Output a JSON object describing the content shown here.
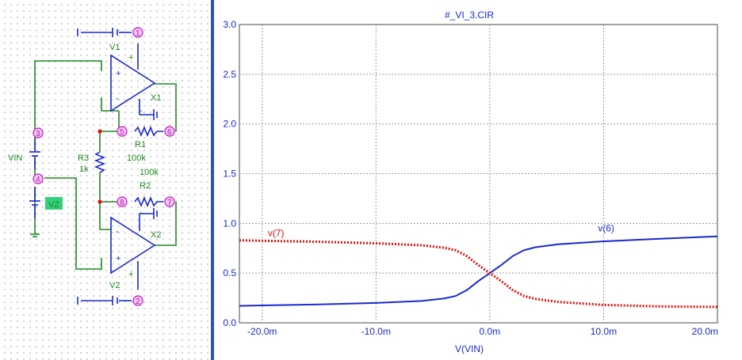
{
  "schematic": {
    "nodes": [
      "1",
      "2",
      "3",
      "4",
      "5",
      "6",
      "7",
      "8"
    ],
    "labels": {
      "v1": "V1",
      "v2": "V2",
      "x1": "X1",
      "x2": "X2",
      "vin": "VIN",
      "vz": "VZ",
      "r3": "R3",
      "r3_value": "1k",
      "r1": "R1",
      "r1_value": "100k",
      "r2": "R2",
      "r2_value": "100k",
      "plus": "+",
      "minus": "-"
    },
    "colors": {
      "wire": "#1f8a1f",
      "component": "#1a28d2",
      "node": "#cc33cc",
      "junction": "#e01010",
      "vz_highlight": "#34d17c"
    }
  },
  "chart_data": {
    "type": "line",
    "title": "#_VI_3.CIR",
    "xlabel": "V(VIN)",
    "ylabel": "",
    "xlim": [
      -0.022,
      0.02
    ],
    "ylim": [
      0,
      3.0
    ],
    "xticks": [
      -0.02,
      -0.01,
      0,
      0.01,
      0.02
    ],
    "xtick_labels": [
      "-20.0m",
      "-10.0m",
      "0.0m",
      "10.0m",
      "20.0m"
    ],
    "yticks": [
      0.0,
      0.5,
      1.0,
      1.5,
      2.0,
      2.5,
      3.0
    ],
    "ytick_labels": [
      "0.0",
      "0.5",
      "1.0",
      "1.5",
      "2.0",
      "2.5",
      "3.0"
    ],
    "grid": true,
    "series": [
      {
        "name": "v(6)",
        "color": "#1a28d2",
        "style": "solid",
        "x": [
          -0.022,
          -0.02,
          -0.015,
          -0.01,
          -0.006,
          -0.004,
          -0.003,
          -0.002,
          -0.001,
          0,
          0.001,
          0.002,
          0.003,
          0.004,
          0.006,
          0.01,
          0.015,
          0.02
        ],
        "y": [
          0.17,
          0.175,
          0.185,
          0.2,
          0.22,
          0.245,
          0.27,
          0.33,
          0.42,
          0.5,
          0.58,
          0.67,
          0.73,
          0.76,
          0.79,
          0.82,
          0.845,
          0.87
        ]
      },
      {
        "name": "v(7)",
        "color": "#e01010",
        "style": "dotted",
        "x": [
          -0.022,
          -0.02,
          -0.015,
          -0.01,
          -0.006,
          -0.004,
          -0.003,
          -0.002,
          -0.001,
          0,
          0.001,
          0.002,
          0.003,
          0.004,
          0.006,
          0.01,
          0.015,
          0.02
        ],
        "y": [
          0.83,
          0.825,
          0.815,
          0.8,
          0.78,
          0.755,
          0.73,
          0.67,
          0.58,
          0.5,
          0.42,
          0.33,
          0.27,
          0.24,
          0.21,
          0.18,
          0.165,
          0.16
        ]
      }
    ],
    "annotations": [
      {
        "text": "v(6)",
        "x": 0.0095,
        "y": 0.92,
        "color": "#1a28d2"
      },
      {
        "text": "v(7)",
        "x": -0.0195,
        "y": 0.87,
        "color": "#e01010"
      }
    ]
  }
}
